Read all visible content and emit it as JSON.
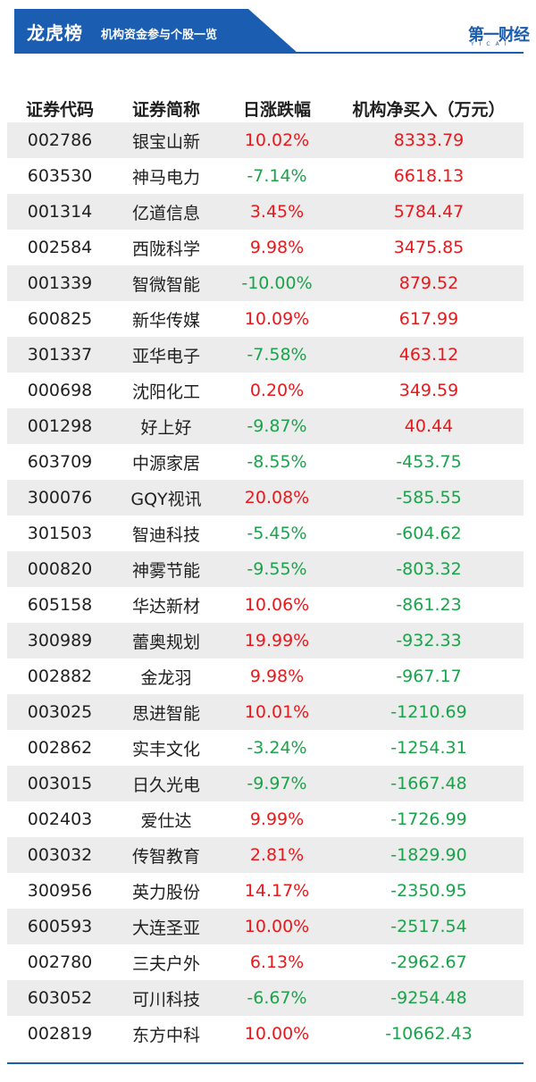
{
  "header": {
    "title": "龙虎榜",
    "subtitle": "机构资金参与个股一览",
    "logo": "第一财经",
    "logo_sub": "YICAI",
    "banner_color": "#1a5db1"
  },
  "table": {
    "columns": [
      "证券代码",
      "证券简称",
      "日涨跌幅",
      "机构净买入（万元）"
    ],
    "positive_color": "#e8191d",
    "negative_color": "#1aa34a",
    "rows": [
      {
        "code": "002786",
        "name": "银宝山新",
        "change": "10.02%",
        "net_buy": "8333.79"
      },
      {
        "code": "603530",
        "name": "神马电力",
        "change": "-7.14%",
        "net_buy": "6618.13"
      },
      {
        "code": "001314",
        "name": "亿道信息",
        "change": "3.45%",
        "net_buy": "5784.47"
      },
      {
        "code": "002584",
        "name": "西陇科学",
        "change": "9.98%",
        "net_buy": "3475.85"
      },
      {
        "code": "001339",
        "name": "智微智能",
        "change": "-10.00%",
        "net_buy": "879.52"
      },
      {
        "code": "600825",
        "name": "新华传媒",
        "change": "10.09%",
        "net_buy": "617.99"
      },
      {
        "code": "301337",
        "name": "亚华电子",
        "change": "-7.58%",
        "net_buy": "463.12"
      },
      {
        "code": "000698",
        "name": "沈阳化工",
        "change": "0.20%",
        "net_buy": "349.59"
      },
      {
        "code": "001298",
        "name": "好上好",
        "change": "-9.87%",
        "net_buy": "40.44"
      },
      {
        "code": "603709",
        "name": "中源家居",
        "change": "-8.55%",
        "net_buy": "-453.75"
      },
      {
        "code": "300076",
        "name": "GQY视讯",
        "change": "20.08%",
        "net_buy": "-585.55"
      },
      {
        "code": "301503",
        "name": "智迪科技",
        "change": "-5.45%",
        "net_buy": "-604.62"
      },
      {
        "code": "000820",
        "name": "神雾节能",
        "change": "-9.55%",
        "net_buy": "-803.32"
      },
      {
        "code": "605158",
        "name": "华达新材",
        "change": "10.06%",
        "net_buy": "-861.23"
      },
      {
        "code": "300989",
        "name": "蕾奥规划",
        "change": "19.99%",
        "net_buy": "-932.33"
      },
      {
        "code": "002882",
        "name": "金龙羽",
        "change": "9.98%",
        "net_buy": "-967.17"
      },
      {
        "code": "003025",
        "name": "思进智能",
        "change": "10.01%",
        "net_buy": "-1210.69"
      },
      {
        "code": "002862",
        "name": "实丰文化",
        "change": "-3.24%",
        "net_buy": "-1254.31"
      },
      {
        "code": "003015",
        "name": "日久光电",
        "change": "-9.97%",
        "net_buy": "-1667.48"
      },
      {
        "code": "002403",
        "name": "爱仕达",
        "change": "9.99%",
        "net_buy": "-1726.99"
      },
      {
        "code": "003032",
        "name": "传智教育",
        "change": "2.81%",
        "net_buy": "-1829.90"
      },
      {
        "code": "300956",
        "name": "英力股份",
        "change": "14.17%",
        "net_buy": "-2350.95"
      },
      {
        "code": "600593",
        "name": "大连圣亚",
        "change": "10.00%",
        "net_buy": "-2517.54"
      },
      {
        "code": "002780",
        "name": "三夫户外",
        "change": "6.13%",
        "net_buy": "-2962.67"
      },
      {
        "code": "603052",
        "name": "可川科技",
        "change": "-6.67%",
        "net_buy": "-9254.48"
      },
      {
        "code": "002819",
        "name": "东方中科",
        "change": "10.00%",
        "net_buy": "-10662.43"
      }
    ]
  }
}
